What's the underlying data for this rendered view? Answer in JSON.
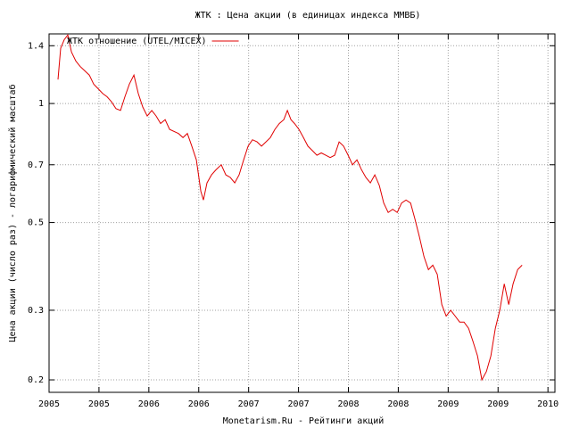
{
  "chart_data": {
    "type": "line",
    "title": "ЖТК : Цена акции (в единицах индекса ММВБ)",
    "x_label": "Monetarism.Ru - Рейтинги акций",
    "y_label": "Цена акции (число раз) - логарифмический масштаб",
    "log_y": true,
    "grid": true,
    "legend": "top-left",
    "xlim": [
      2005,
      2010.07
    ],
    "ylim": [
      0.186,
      1.5
    ],
    "xticks": [
      2005,
      {
        "value": 2005.5,
        "label": "2005"
      },
      2006,
      {
        "value": 2006.5,
        "label": "2006"
      },
      2007,
      {
        "value": 2007.5,
        "label": "2007"
      },
      2008,
      {
        "value": 2008.5,
        "label": "2008"
      },
      2009,
      {
        "value": 2009.5,
        "label": "2009"
      },
      2010
    ],
    "yticks": [
      0.2,
      0.3,
      0.5,
      0.7,
      1,
      1.4
    ],
    "series": [
      {
        "name": "ЖТК отношение (UTEL/MICEX)",
        "color": "#e00000",
        "x": [
          2005.089,
          2005.116,
          2005.152,
          2005.188,
          2005.224,
          2005.268,
          2005.313,
          2005.358,
          2005.403,
          2005.447,
          2005.492,
          2005.537,
          2005.581,
          2005.626,
          2005.671,
          2005.716,
          2005.76,
          2005.805,
          2005.85,
          2005.894,
          2005.939,
          2005.984,
          2006.029,
          2006.073,
          2006.118,
          2006.163,
          2006.208,
          2006.297,
          2006.342,
          2006.386,
          2006.431,
          2006.476,
          2006.521,
          2006.547,
          2006.583,
          2006.628,
          2006.673,
          2006.726,
          2006.771,
          2006.816,
          2006.861,
          2006.905,
          2006.95,
          2006.995,
          2007.039,
          2007.084,
          2007.129,
          2007.174,
          2007.218,
          2007.263,
          2007.308,
          2007.353,
          2007.388,
          2007.424,
          2007.46,
          2007.505,
          2007.549,
          2007.594,
          2007.639,
          2007.684,
          2007.728,
          2007.773,
          2007.818,
          2007.862,
          2007.907,
          2007.952,
          2007.997,
          2008.041,
          2008.086,
          2008.131,
          2008.175,
          2008.22,
          2008.265,
          2008.31,
          2008.354,
          2008.399,
          2008.444,
          2008.489,
          2008.533,
          2008.578,
          2008.623,
          2008.667,
          2008.712,
          2008.757,
          2008.802,
          2008.846,
          2008.891,
          2008.936,
          2008.98,
          2009.025,
          2009.07,
          2009.115,
          2009.159,
          2009.204,
          2009.249,
          2009.294,
          2009.338,
          2009.383,
          2009.428,
          2009.473,
          2009.517,
          2009.562,
          2009.607,
          2009.651,
          2009.696,
          2009.741
        ],
        "values": [
          1.15,
          1.38,
          1.45,
          1.49,
          1.35,
          1.28,
          1.24,
          1.21,
          1.18,
          1.12,
          1.09,
          1.06,
          1.04,
          1.01,
          0.97,
          0.96,
          1.04,
          1.12,
          1.18,
          1.06,
          0.98,
          0.93,
          0.96,
          0.93,
          0.89,
          0.91,
          0.86,
          0.84,
          0.82,
          0.84,
          0.78,
          0.72,
          0.6,
          0.57,
          0.63,
          0.66,
          0.68,
          0.7,
          0.66,
          0.65,
          0.63,
          0.66,
          0.72,
          0.78,
          0.81,
          0.8,
          0.78,
          0.8,
          0.82,
          0.86,
          0.89,
          0.91,
          0.96,
          0.91,
          0.89,
          0.86,
          0.82,
          0.78,
          0.76,
          0.74,
          0.75,
          0.74,
          0.73,
          0.74,
          0.8,
          0.78,
          0.74,
          0.7,
          0.72,
          0.68,
          0.65,
          0.63,
          0.66,
          0.62,
          0.56,
          0.53,
          0.54,
          0.53,
          0.56,
          0.57,
          0.56,
          0.51,
          0.46,
          0.41,
          0.38,
          0.39,
          0.37,
          0.31,
          0.29,
          0.3,
          0.29,
          0.28,
          0.28,
          0.27,
          0.25,
          0.23,
          0.2,
          0.21,
          0.23,
          0.27,
          0.3,
          0.35,
          0.31,
          0.35,
          0.38,
          0.39
        ]
      }
    ]
  }
}
